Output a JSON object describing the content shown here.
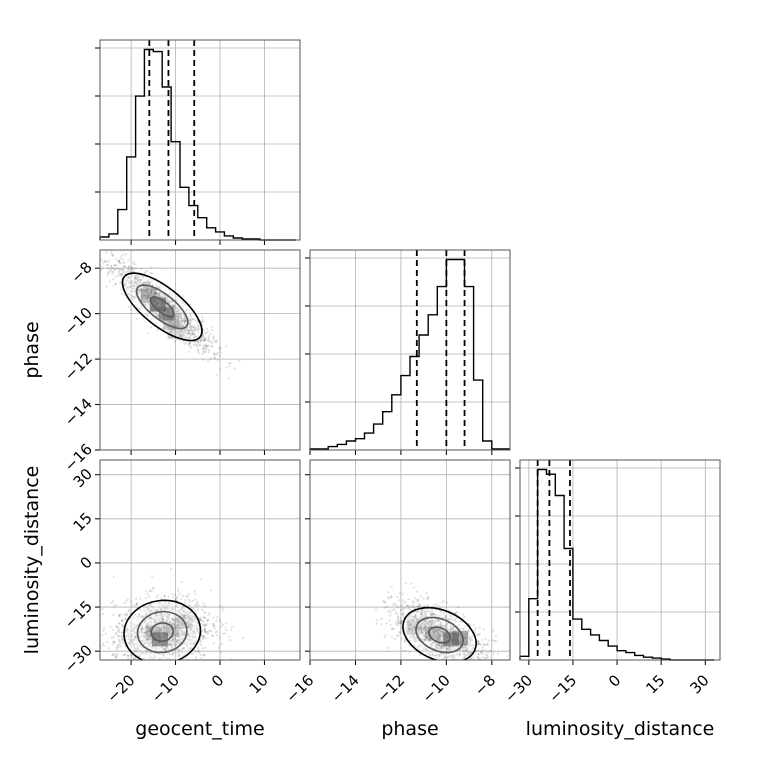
{
  "chart_data": {
    "type": "corner",
    "grid": true,
    "colors": {
      "line": "#000000",
      "points": "#000000",
      "grid": "#b0b0b0",
      "background": "#ffffff"
    },
    "parameters": [
      {
        "key": "geocent_time",
        "label": "geocent_time",
        "range": [
          -27,
          18
        ],
        "ticks": [
          -20,
          -10,
          0,
          10
        ],
        "tick_labels": [
          "−20",
          "−10",
          "0",
          "10"
        ],
        "quantiles": [
          -15.9,
          -11.6,
          -5.8
        ]
      },
      {
        "key": "phase",
        "label": "phase",
        "range": [
          -16,
          -7.2
        ],
        "ticks": [
          -16,
          -14,
          -12,
          -10,
          -8
        ],
        "tick_labels": [
          "−16",
          "−14",
          "−12",
          "−10",
          "−8"
        ],
        "quantiles": [
          -11.3,
          -10.0,
          -9.2
        ]
      },
      {
        "key": "luminosity_distance",
        "label": "luminosity_distance",
        "range": [
          -33,
          35
        ],
        "ticks": [
          -30,
          -15,
          0,
          15,
          30
        ],
        "tick_labels": [
          "−30",
          "−15",
          "0",
          "15",
          "30"
        ],
        "quantiles": [
          -27.0,
          -23.0,
          -16.0
        ]
      }
    ],
    "histograms": {
      "geocent_time": {
        "bin_edges": [
          -27,
          -25,
          -23,
          -21,
          -19,
          -17,
          -15,
          -13,
          -11,
          -9,
          -7,
          -5,
          -3,
          -1,
          1,
          3,
          5,
          7,
          9,
          11,
          13,
          15,
          17
        ],
        "counts": [
          0.03,
          0.06,
          0.3,
          0.82,
          1.42,
          1.88,
          1.86,
          1.51,
          0.97,
          0.52,
          0.34,
          0.22,
          0.12,
          0.08,
          0.04,
          0.02,
          0.01,
          0.01,
          0,
          0,
          0,
          0
        ]
      },
      "phase": {
        "bin_edges": [
          -16.0,
          -15.6,
          -15.2,
          -14.8,
          -14.4,
          -14.0,
          -13.6,
          -13.2,
          -12.8,
          -12.4,
          -12.0,
          -11.6,
          -11.2,
          -10.8,
          -10.4,
          -10.0,
          -9.6,
          -9.2,
          -8.8,
          -8.4,
          -8.0,
          -7.6,
          -7.2
        ],
        "counts": [
          0.01,
          0.01,
          0.03,
          0.05,
          0.08,
          0.1,
          0.15,
          0.23,
          0.34,
          0.49,
          0.66,
          0.83,
          1.02,
          1.2,
          1.45,
          1.69,
          1.69,
          1.45,
          0.62,
          0.08,
          0.01,
          0.01
        ]
      },
      "luminosity_distance": {
        "bin_edges": [
          -33,
          -30,
          -27,
          -24,
          -21,
          -18,
          -15,
          -12,
          -9,
          -6,
          -3,
          0,
          3,
          6,
          9,
          12,
          15,
          18,
          21,
          24,
          27,
          30,
          33
        ],
        "counts": [
          0.04,
          0.66,
          2.05,
          2.0,
          1.77,
          1.2,
          0.44,
          0.33,
          0.27,
          0.21,
          0.15,
          0.1,
          0.08,
          0.05,
          0.03,
          0.02,
          0.01,
          0,
          0,
          0,
          0,
          0
        ]
      }
    },
    "pairs": [
      {
        "x": "geocent_time",
        "y": "phase",
        "correlation": -0.9,
        "center": [
          -13,
          -9.7
        ],
        "sigma": [
          5.5,
          0.95
        ],
        "shading": [
          [
            -14,
            -9.6,
            0.62
          ],
          [
            -12,
            -10.0,
            0.55
          ],
          [
            -16,
            -9.2,
            0.35
          ],
          [
            -11,
            -10.4,
            0.3
          ],
          [
            -10,
            -10.8,
            0.18
          ]
        ]
      },
      {
        "x": "geocent_time",
        "y": "luminosity_distance",
        "correlation": 0.2,
        "center": [
          -13,
          -23.5
        ],
        "sigma": [
          5.5,
          6.0
        ],
        "shading": [
          [
            -13.5,
            -26,
            0.6
          ],
          [
            -15,
            -24,
            0.32
          ],
          [
            -11,
            -23,
            0.25
          ],
          [
            -8,
            -20,
            0.15
          ]
        ]
      },
      {
        "x": "phase",
        "y": "luminosity_distance",
        "correlation": -0.6,
        "center": [
          -10.3,
          -24.5
        ],
        "sigma": [
          1.0,
          5.5
        ],
        "shading": [
          [
            -9.8,
            -26,
            0.58
          ],
          [
            -9.4,
            -25.5,
            0.5
          ],
          [
            -10.6,
            -24,
            0.3
          ],
          [
            -11.4,
            -22,
            0.18
          ]
        ]
      }
    ]
  }
}
